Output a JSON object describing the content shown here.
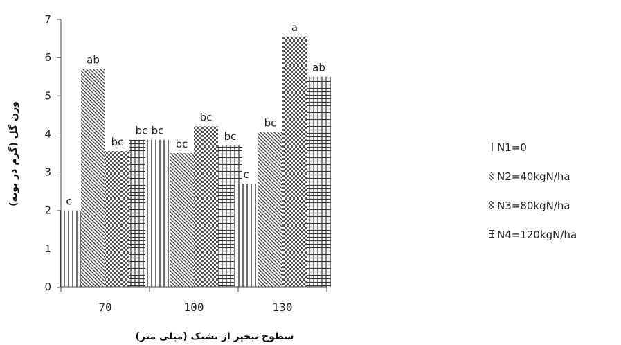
{
  "chart_data": {
    "type": "bar",
    "categories": [
      "70",
      "100",
      "130"
    ],
    "xlabel": "سطوح تبخیر از تشتک (میلی متر)",
    "ylabel": "وزن گل (گرم در بوته)",
    "ylim": [
      0,
      7
    ],
    "yticks": [
      "0",
      "1",
      "2",
      "3",
      "4",
      "5",
      "6",
      "7"
    ],
    "grid": false,
    "legend_position": "right",
    "series": [
      {
        "name": "N1=0",
        "values": [
          2.0,
          3.85,
          2.7
        ],
        "labels": [
          "c",
          "bc",
          "c"
        ]
      },
      {
        "name": "N2=40kgN/ha",
        "values": [
          5.7,
          3.5,
          4.05
        ],
        "labels": [
          "ab",
          "bc",
          "bc"
        ]
      },
      {
        "name": "N3=80kgN/ha",
        "values": [
          3.55,
          4.2,
          6.55
        ],
        "labels": [
          "bc",
          "bc",
          "a"
        ]
      },
      {
        "name": "N4=120kgN/ha",
        "values": [
          3.85,
          3.7,
          5.5
        ],
        "labels": [
          "bc",
          "bc",
          "ab"
        ]
      }
    ]
  }
}
